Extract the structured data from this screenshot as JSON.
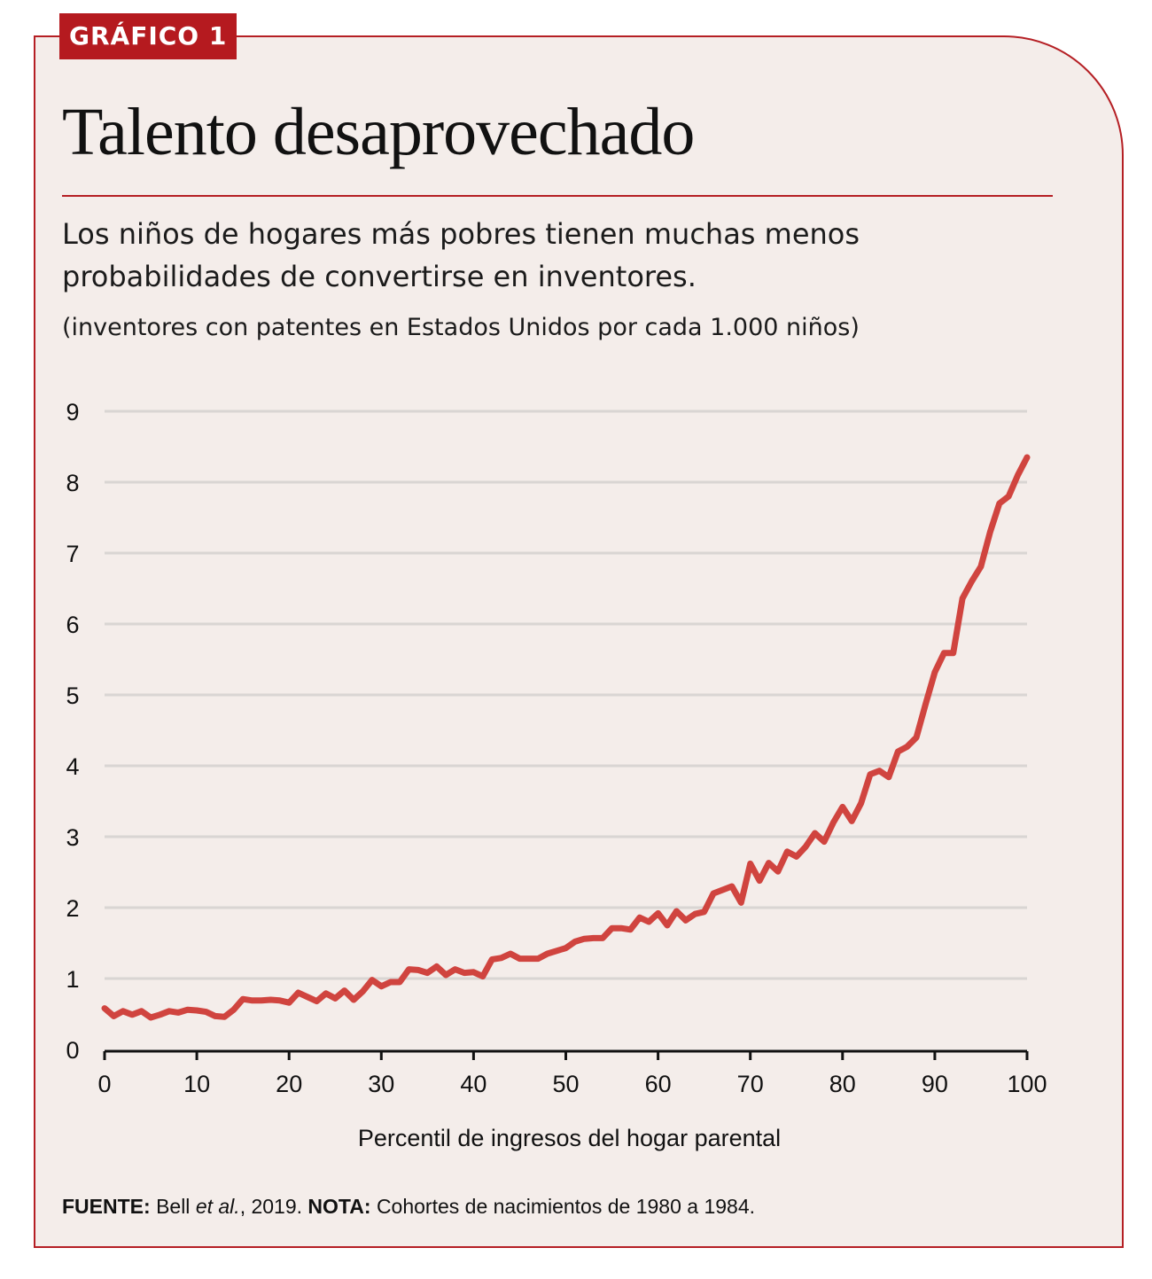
{
  "tag": "GRÁFICO 1",
  "title": "Talento desaprovechado",
  "subtitle": "Los niños de hogares más pobres tienen muchas menos probabilidades de convertirse en inventores.",
  "units_note": "(inventores con patentes en Estados Unidos por cada 1.000 niños)",
  "footer": {
    "source_label": "FUENTE:",
    "source_author": "Bell ",
    "source_etal": "et al.",
    "source_year": ", 2019.",
    "note_label": "NOTA:",
    "note_text": "Cohortes de nacimientos de 1980 a 1984."
  },
  "colors": {
    "accent": "#b51f24",
    "line": "#d0443f",
    "grid": "#d9d5d3",
    "background": "#f4edea"
  },
  "chart_data": {
    "type": "line",
    "title": "Talento desaprovechado",
    "xlabel": "Percentil de ingresos del hogar parental",
    "ylabel": "inventores con patentes en Estados Unidos por cada 1.000 niños",
    "xlim": [
      0,
      100
    ],
    "ylim": [
      0,
      9
    ],
    "xticks": [
      0,
      10,
      20,
      30,
      40,
      50,
      60,
      70,
      80,
      90,
      100
    ],
    "yticks": [
      0,
      1,
      2,
      3,
      4,
      5,
      6,
      7,
      8,
      9
    ],
    "grid": "horizontal",
    "legend": "none",
    "series": [
      {
        "name": "Inventores por cada 1.000 niños",
        "x": [
          0,
          1,
          2,
          3,
          4,
          5,
          6,
          7,
          8,
          9,
          10,
          11,
          12,
          13,
          14,
          15,
          16,
          17,
          18,
          19,
          20,
          21,
          22,
          23,
          24,
          25,
          26,
          27,
          28,
          29,
          30,
          31,
          32,
          33,
          34,
          35,
          36,
          37,
          38,
          39,
          40,
          41,
          42,
          43,
          44,
          45,
          46,
          47,
          48,
          49,
          50,
          51,
          52,
          53,
          54,
          55,
          56,
          57,
          58,
          59,
          60,
          61,
          62,
          63,
          64,
          65,
          66,
          67,
          68,
          69,
          70,
          71,
          72,
          73,
          74,
          75,
          76,
          77,
          78,
          79,
          80,
          81,
          82,
          83,
          84,
          85,
          86,
          87,
          88,
          89,
          90,
          91,
          92,
          93,
          94,
          95,
          96,
          97,
          98,
          99,
          100
        ],
        "values": [
          0.58,
          0.47,
          0.54,
          0.49,
          0.54,
          0.45,
          0.49,
          0.54,
          0.52,
          0.56,
          0.55,
          0.53,
          0.47,
          0.46,
          0.56,
          0.71,
          0.69,
          0.69,
          0.7,
          0.69,
          0.66,
          0.8,
          0.74,
          0.68,
          0.79,
          0.72,
          0.83,
          0.7,
          0.82,
          0.98,
          0.89,
          0.95,
          0.95,
          1.13,
          1.12,
          1.08,
          1.17,
          1.05,
          1.13,
          1.08,
          1.09,
          1.03,
          1.27,
          1.29,
          1.35,
          1.28,
          1.28,
          1.28,
          1.35,
          1.39,
          1.43,
          1.52,
          1.56,
          1.57,
          1.57,
          1.71,
          1.71,
          1.69,
          1.86,
          1.8,
          1.92,
          1.75,
          1.95,
          1.82,
          1.91,
          1.94,
          2.2,
          2.25,
          2.3,
          2.07,
          2.62,
          2.38,
          2.63,
          2.51,
          2.79,
          2.72,
          2.86,
          3.05,
          2.93,
          3.2,
          3.42,
          3.22,
          3.47,
          3.88,
          3.93,
          3.84,
          4.2,
          4.27,
          4.4,
          4.87,
          5.32,
          5.59,
          5.59,
          6.36,
          6.6,
          6.81,
          7.3,
          7.7,
          7.8,
          8.1,
          8.35
        ]
      }
    ]
  }
}
